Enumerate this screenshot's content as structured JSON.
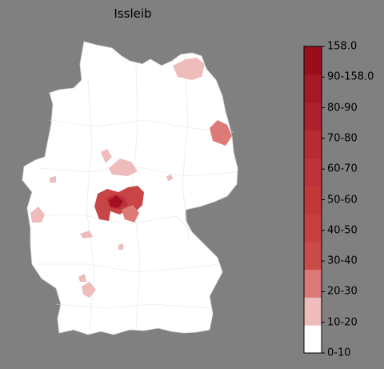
{
  "map": {
    "title": "Issleib",
    "background_color": "#808080",
    "land_color": "#ffffff",
    "border_color": "#d9d9d9",
    "highlight_regions": [
      {
        "name": "central-core",
        "color": "#a50f22",
        "value_bin": "90-158.0"
      },
      {
        "name": "central-inner",
        "color": "#c0323a",
        "value_bin": "60-70"
      },
      {
        "name": "central-outer",
        "color": "#c84547",
        "value_bin": "50-60"
      },
      {
        "name": "east-border",
        "color": "#dc7a78",
        "value_bin": "20-30"
      },
      {
        "name": "northeast-coast",
        "color": "#eebcbb",
        "value_bin": "10-20"
      },
      {
        "name": "north-central",
        "color": "#eebcbb",
        "value_bin": "10-20"
      },
      {
        "name": "west-central",
        "color": "#eebcbb",
        "value_bin": "10-20"
      },
      {
        "name": "southwest",
        "color": "#eebcbb",
        "value_bin": "10-20"
      },
      {
        "name": "central-south",
        "color": "#dc7a78",
        "value_bin": "20-30"
      }
    ]
  },
  "colorbar": {
    "labels": [
      "158.0",
      "90-158.0",
      "80-90",
      "70-80",
      "60-70",
      "50-60",
      "40-50",
      "30-40",
      "20-30",
      "10-20",
      "0-10"
    ],
    "colors": [
      "#ffffff",
      "#eebcbb",
      "#dc7a78",
      "#cb4a4a",
      "#c6403f",
      "#c23838",
      "#c0323a",
      "#b82b33",
      "#af202d",
      "#a51824",
      "#9a0e1c"
    ]
  }
}
